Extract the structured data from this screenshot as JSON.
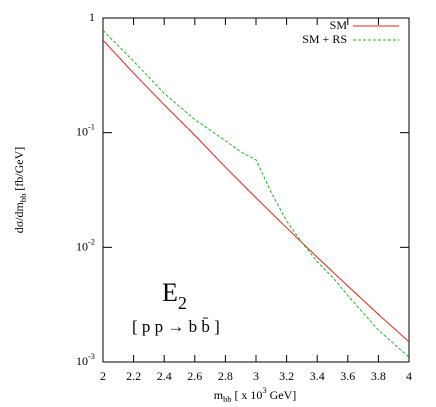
{
  "chart_data": {
    "type": "line",
    "xlabel": [
      {
        "text": "m"
      },
      {
        "text": "bb",
        "shift": "sub"
      },
      {
        "text": " [ x 10"
      },
      {
        "text": "3",
        "shift": "sup"
      },
      {
        "text": " GeV]"
      }
    ],
    "ylabel": [
      {
        "text": "dσ/dm"
      },
      {
        "text": "bb",
        "shift": "sub"
      },
      {
        "text": " [fb/GeV]"
      }
    ],
    "annotations": [
      {
        "parts": [
          {
            "text": "E"
          },
          {
            "text": "2",
            "shift": "sub"
          }
        ]
      },
      {
        "parts": [
          {
            "text": "[ p p → b b̄ ]"
          }
        ]
      }
    ],
    "log_y": true,
    "legend": "top-right",
    "xlim": [
      2,
      4
    ],
    "ylim": [
      0.001,
      1
    ],
    "xticks": [
      2,
      2.2,
      2.4,
      2.6,
      2.8,
      3,
      3.2,
      3.4,
      3.6,
      3.8,
      4
    ],
    "yticks": [
      {
        "value": 0.001,
        "label": "10",
        "exp": "-3"
      },
      {
        "value": 0.01,
        "label": "10",
        "exp": "-2"
      },
      {
        "value": 0.1,
        "label": "10",
        "exp": "-1"
      },
      1
    ],
    "series": [
      {
        "name": "SM",
        "color": "#e8201c",
        "dash": false,
        "x": [
          2,
          2.2,
          2.4,
          2.6,
          2.8,
          3,
          3.2,
          3.4,
          3.6,
          3.8,
          4
        ],
        "values": [
          0.64,
          0.33,
          0.175,
          0.095,
          0.05,
          0.027,
          0.0148,
          0.0082,
          0.0046,
          0.0026,
          0.0015
        ]
      },
      {
        "name": "SM + RS",
        "color": "#1fb81f",
        "dash": true,
        "x": [
          2,
          2.2,
          2.4,
          2.6,
          2.8,
          2.9,
          3,
          3.1,
          3.2,
          3.3,
          3.4,
          3.5,
          3.6,
          3.8,
          4
        ],
        "values": [
          0.78,
          0.42,
          0.22,
          0.13,
          0.085,
          0.068,
          0.058,
          0.03,
          0.017,
          0.011,
          0.0075,
          0.0055,
          0.0038,
          0.0019,
          0.0011
        ]
      }
    ]
  }
}
